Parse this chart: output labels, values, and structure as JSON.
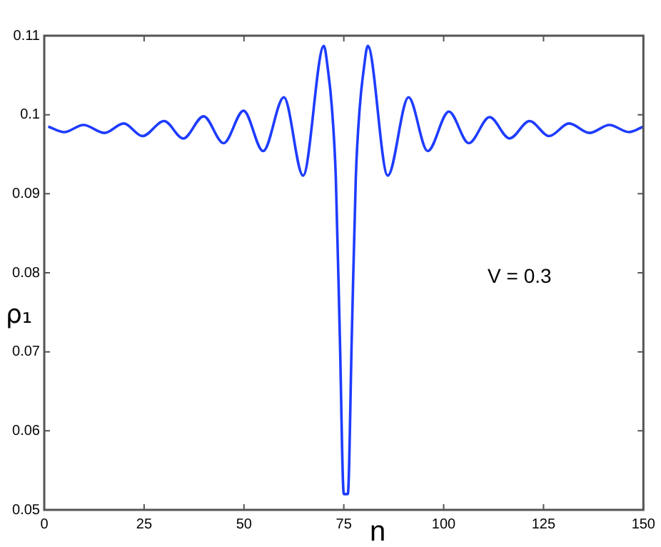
{
  "chart_data": {
    "type": "line",
    "xlabel": "n",
    "ylabel": "ρ₁",
    "annotations": [
      "V = 0.3"
    ],
    "xlim": [
      0,
      150
    ],
    "xticks": [
      0,
      25,
      50,
      75,
      100,
      125,
      150
    ],
    "ylim": [
      0.05,
      0.11
    ],
    "yticks": [
      0.05,
      0.06,
      0.07,
      0.08,
      0.09,
      0.1,
      0.11
    ],
    "marker": "none",
    "line_style": "solid",
    "series": [
      {
        "color": "#1e3cff",
        "x": [
          1,
          5,
          9.8,
          15.1,
          19.9,
          24.6,
          30,
          34.8,
          39.9,
          44.9,
          49.9,
          54.8,
          60,
          64.8,
          70,
          71,
          72,
          73,
          74,
          75,
          76,
          77,
          78,
          79,
          80,
          81,
          86,
          91.2,
          96,
          101.3,
          106.3,
          111.5,
          116.5,
          121.5,
          126.4,
          131.4,
          136.5,
          141.5,
          146.4,
          150
        ],
        "values": [
          0.0985,
          0.0978,
          0.0987,
          0.0977,
          0.0989,
          0.0973,
          0.0992,
          0.097,
          0.0998,
          0.0964,
          0.1005,
          0.0954,
          0.1022,
          0.0923,
          0.1087,
          0.1058,
          0.101,
          0.092,
          0.072,
          0.052,
          0.052,
          0.072,
          0.092,
          0.101,
          0.1058,
          0.1087,
          0.0923,
          0.1022,
          0.0954,
          0.1004,
          0.0964,
          0.0997,
          0.097,
          0.0992,
          0.0973,
          0.0989,
          0.0977,
          0.0987,
          0.0978,
          0.0985
        ]
      }
    ]
  }
}
